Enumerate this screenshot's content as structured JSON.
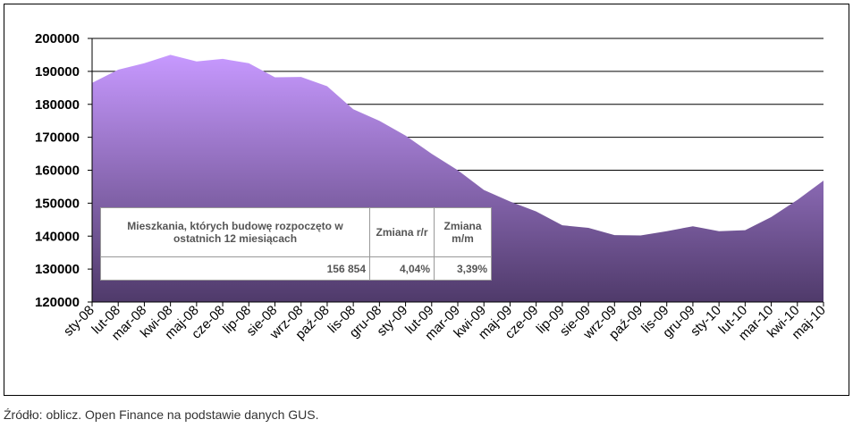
{
  "chart_data": {
    "type": "area",
    "categories": [
      "sty-08",
      "lut-08",
      "mar-08",
      "kwi-08",
      "maj-08",
      "cze-08",
      "lip-08",
      "sie-08",
      "wrz-08",
      "paź-08",
      "lis-08",
      "gru-08",
      "sty-09",
      "lut-09",
      "mar-09",
      "kwi-09",
      "maj-09",
      "cze-09",
      "lip-09",
      "sie-09",
      "wrz-09",
      "paź-09",
      "lis-09",
      "gru-09",
      "sty-10",
      "lut-10",
      "mar-10",
      "kwi-10",
      "maj-10"
    ],
    "values": [
      186500,
      190500,
      192500,
      195000,
      193000,
      193800,
      192500,
      188200,
      188300,
      185500,
      178500,
      175000,
      170500,
      165000,
      160000,
      154000,
      150500,
      147500,
      143300,
      142500,
      140300,
      140200,
      141500,
      143000,
      141500,
      141800,
      145800,
      151000,
      156854
    ],
    "ylim": [
      120000,
      200000
    ],
    "yticks": [
      "120000",
      "130000",
      "140000",
      "150000",
      "160000",
      "170000",
      "180000",
      "190000",
      "200000"
    ],
    "grid": true,
    "colors": {
      "top": "#c799ff",
      "bottom": "#4f3a6a"
    }
  },
  "info_table": {
    "headers": [
      "Mieszkania, których budowę rozpoczęto w ostatnich 12 miesiącach",
      "Zmiana r/r",
      "Zmiana m/m"
    ],
    "values": [
      "156 854",
      "4,04%",
      "3,39%"
    ]
  },
  "source": "Źródło: oblicz. Open Finance na podstawie danych GUS."
}
